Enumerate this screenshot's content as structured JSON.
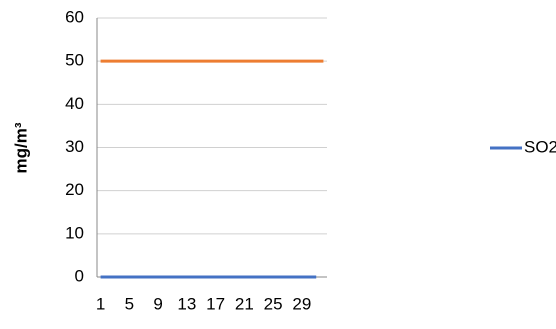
{
  "chart_data": {
    "type": "line",
    "ylabel": "mg/m³",
    "categories": [
      "1",
      null,
      null,
      null,
      "5",
      null,
      null,
      null,
      "9",
      null,
      null,
      null,
      "13",
      null,
      null,
      null,
      "17",
      null,
      null,
      null,
      "21",
      null,
      null,
      null,
      "25",
      null,
      null,
      null,
      "29",
      null,
      null,
      null
    ],
    "series": [
      {
        "name": "SO2",
        "color": "#4472c4",
        "values": [
          0,
          0,
          0,
          0,
          0,
          0,
          0,
          0,
          0,
          0,
          0,
          0,
          0,
          0,
          0,
          0,
          0,
          0,
          0,
          0,
          0,
          0,
          0,
          0,
          0,
          0,
          0,
          0,
          0,
          0,
          0,
          null
        ]
      },
      {
        "color": "#ed7d31",
        "values": [
          50,
          50,
          50,
          50,
          50,
          50,
          50,
          50,
          50,
          50,
          50,
          50,
          50,
          50,
          50,
          50,
          50,
          50,
          50,
          50,
          50,
          50,
          50,
          50,
          50,
          50,
          50,
          50,
          50,
          50,
          50,
          50
        ]
      }
    ],
    "ylim": [
      0,
      60
    ],
    "yticks": [
      0,
      10,
      20,
      30,
      40,
      50,
      60
    ],
    "grid": true,
    "legend": "right"
  }
}
